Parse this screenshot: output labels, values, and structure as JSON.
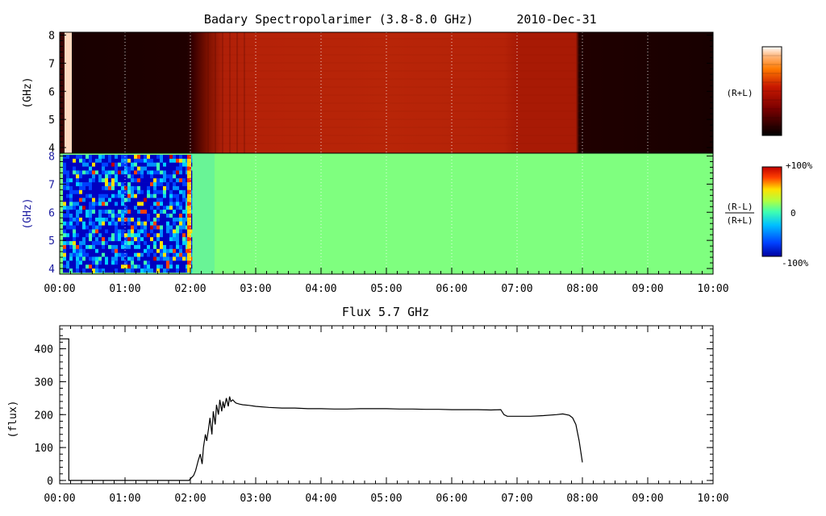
{
  "title": "Badary Spectropolarimer (3.8-8.0 GHz)",
  "date": "2010-Dec-31",
  "time_ticks": [
    "00:00",
    "01:00",
    "02:00",
    "03:00",
    "04:00",
    "05:00",
    "06:00",
    "07:00",
    "08:00",
    "09:00",
    "10:00"
  ],
  "spectrogram_intensity": {
    "ylabel": "(GHz)",
    "yticks": [
      "4",
      "5",
      "6",
      "7",
      "8"
    ],
    "side_label": "(R+L)"
  },
  "spectrogram_polarization": {
    "ylabel": "(GHz)",
    "yticks": [
      "4",
      "5",
      "6",
      "7",
      "8"
    ],
    "side_label_top": "(R-L)",
    "side_label_bottom": "(R+L)",
    "colorbar_labels": {
      "top": "+100%",
      "mid": "0",
      "bottom": "-100%"
    }
  },
  "flux_plot": {
    "title": "Flux 5.7 GHz",
    "ylabel": "(flux)",
    "yticks": [
      "0",
      "100",
      "200",
      "300",
      "400"
    ]
  },
  "chart_data": {
    "type": "line",
    "title": "Flux 5.7 GHz",
    "xlabel": "",
    "ylabel": "(flux)",
    "xlim": [
      "00:00",
      "10:00"
    ],
    "ylim": [
      -10,
      470
    ],
    "x_hours": [
      0.0,
      0.14,
      0.14,
      1.98,
      2.0,
      2.05,
      2.08,
      2.12,
      2.15,
      2.18,
      2.2,
      2.23,
      2.25,
      2.28,
      2.3,
      2.33,
      2.35,
      2.38,
      2.4,
      2.43,
      2.45,
      2.48,
      2.5,
      2.52,
      2.55,
      2.58,
      2.6,
      2.62,
      2.65,
      2.68,
      2.7,
      2.75,
      2.8,
      2.9,
      3.0,
      3.2,
      3.4,
      3.6,
      3.8,
      4.0,
      4.2,
      4.4,
      4.6,
      4.8,
      5.0,
      5.2,
      5.4,
      5.6,
      5.8,
      6.0,
      6.2,
      6.4,
      6.6,
      6.75,
      6.8,
      6.85,
      7.0,
      7.2,
      7.4,
      7.6,
      7.7,
      7.8,
      7.85,
      7.9,
      7.95,
      8.0
    ],
    "y_flux": [
      430,
      430,
      0,
      0,
      5,
      15,
      30,
      60,
      80,
      50,
      100,
      140,
      120,
      160,
      190,
      140,
      210,
      170,
      230,
      200,
      245,
      210,
      240,
      220,
      250,
      225,
      255,
      240,
      245,
      238,
      235,
      232,
      230,
      228,
      225,
      222,
      220,
      220,
      218,
      218,
      217,
      217,
      218,
      218,
      218,
      217,
      217,
      216,
      216,
      215,
      215,
      215,
      214,
      215,
      200,
      195,
      195,
      195,
      197,
      200,
      202,
      198,
      190,
      170,
      120,
      55
    ]
  },
  "colors": {
    "pol_background": "#7fff7f",
    "intensity_dark": "#1a0000",
    "intensity_red": "#b52208",
    "flux_line": "#000000"
  }
}
